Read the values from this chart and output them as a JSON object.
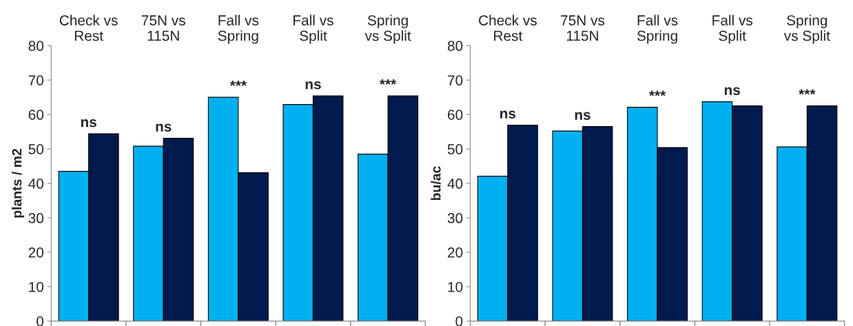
{
  "chart_data": [
    {
      "type": "bar",
      "ylabel": "plants / m2",
      "categories": [
        "Check vs\nRest",
        "75N vs\n115N",
        "Fall vs\nSpring",
        "Fall vs\nSplit",
        "Spring\nvs Split"
      ],
      "ylim": [
        0,
        80
      ],
      "yticks": [
        0,
        10,
        20,
        30,
        40,
        50,
        60,
        70,
        80
      ],
      "grid": false,
      "series": [
        {
          "color": "#00b0f0",
          "values": [
            43.5,
            50.8,
            65,
            62.9,
            48.5
          ]
        },
        {
          "color": "#001a4d",
          "values": [
            54.4,
            53.1,
            43.1,
            65.4,
            65.4
          ]
        }
      ],
      "annotations": [
        {
          "text": "ns",
          "x": "Check vs\nRest",
          "y": 54.4
        },
        {
          "text": "ns",
          "x": "75N vs\n115N",
          "y": 53.1
        },
        {
          "text": "***",
          "x": "Fall vs\nSpring",
          "y": 65
        },
        {
          "text": "ns",
          "x": "Fall vs\nSplit",
          "y": 65.4
        },
        {
          "text": "***",
          "x": "Spring\nvs Split",
          "y": 65.4
        }
      ]
    },
    {
      "type": "bar",
      "ylabel": "bu/ac",
      "categories": [
        "Check vs\nRest",
        "75N vs\n115N",
        "Fall vs\nSpring",
        "Fall vs\nSplit",
        "Spring\nvs Split"
      ],
      "ylim": [
        0,
        80
      ],
      "yticks": [
        0,
        10,
        20,
        30,
        40,
        50,
        60,
        70,
        80
      ],
      "grid": false,
      "series": [
        {
          "color": "#00b0f0",
          "values": [
            42.1,
            55.2,
            62.1,
            63.7,
            50.6
          ]
        },
        {
          "color": "#001a4d",
          "values": [
            56.9,
            56.5,
            50.4,
            62.5,
            62.5
          ]
        }
      ],
      "annotations": [
        {
          "text": "ns",
          "x": "Check vs\nRest",
          "y": 56.9
        },
        {
          "text": "ns",
          "x": "75N vs\n115N",
          "y": 56.5
        },
        {
          "text": "***",
          "x": "Fall vs\nSpring",
          "y": 62.1
        },
        {
          "text": "ns",
          "x": "Fall vs\nSplit",
          "y": 63.7
        },
        {
          "text": "***",
          "x": "Spring\nvs Split",
          "y": 62.5
        }
      ]
    }
  ]
}
